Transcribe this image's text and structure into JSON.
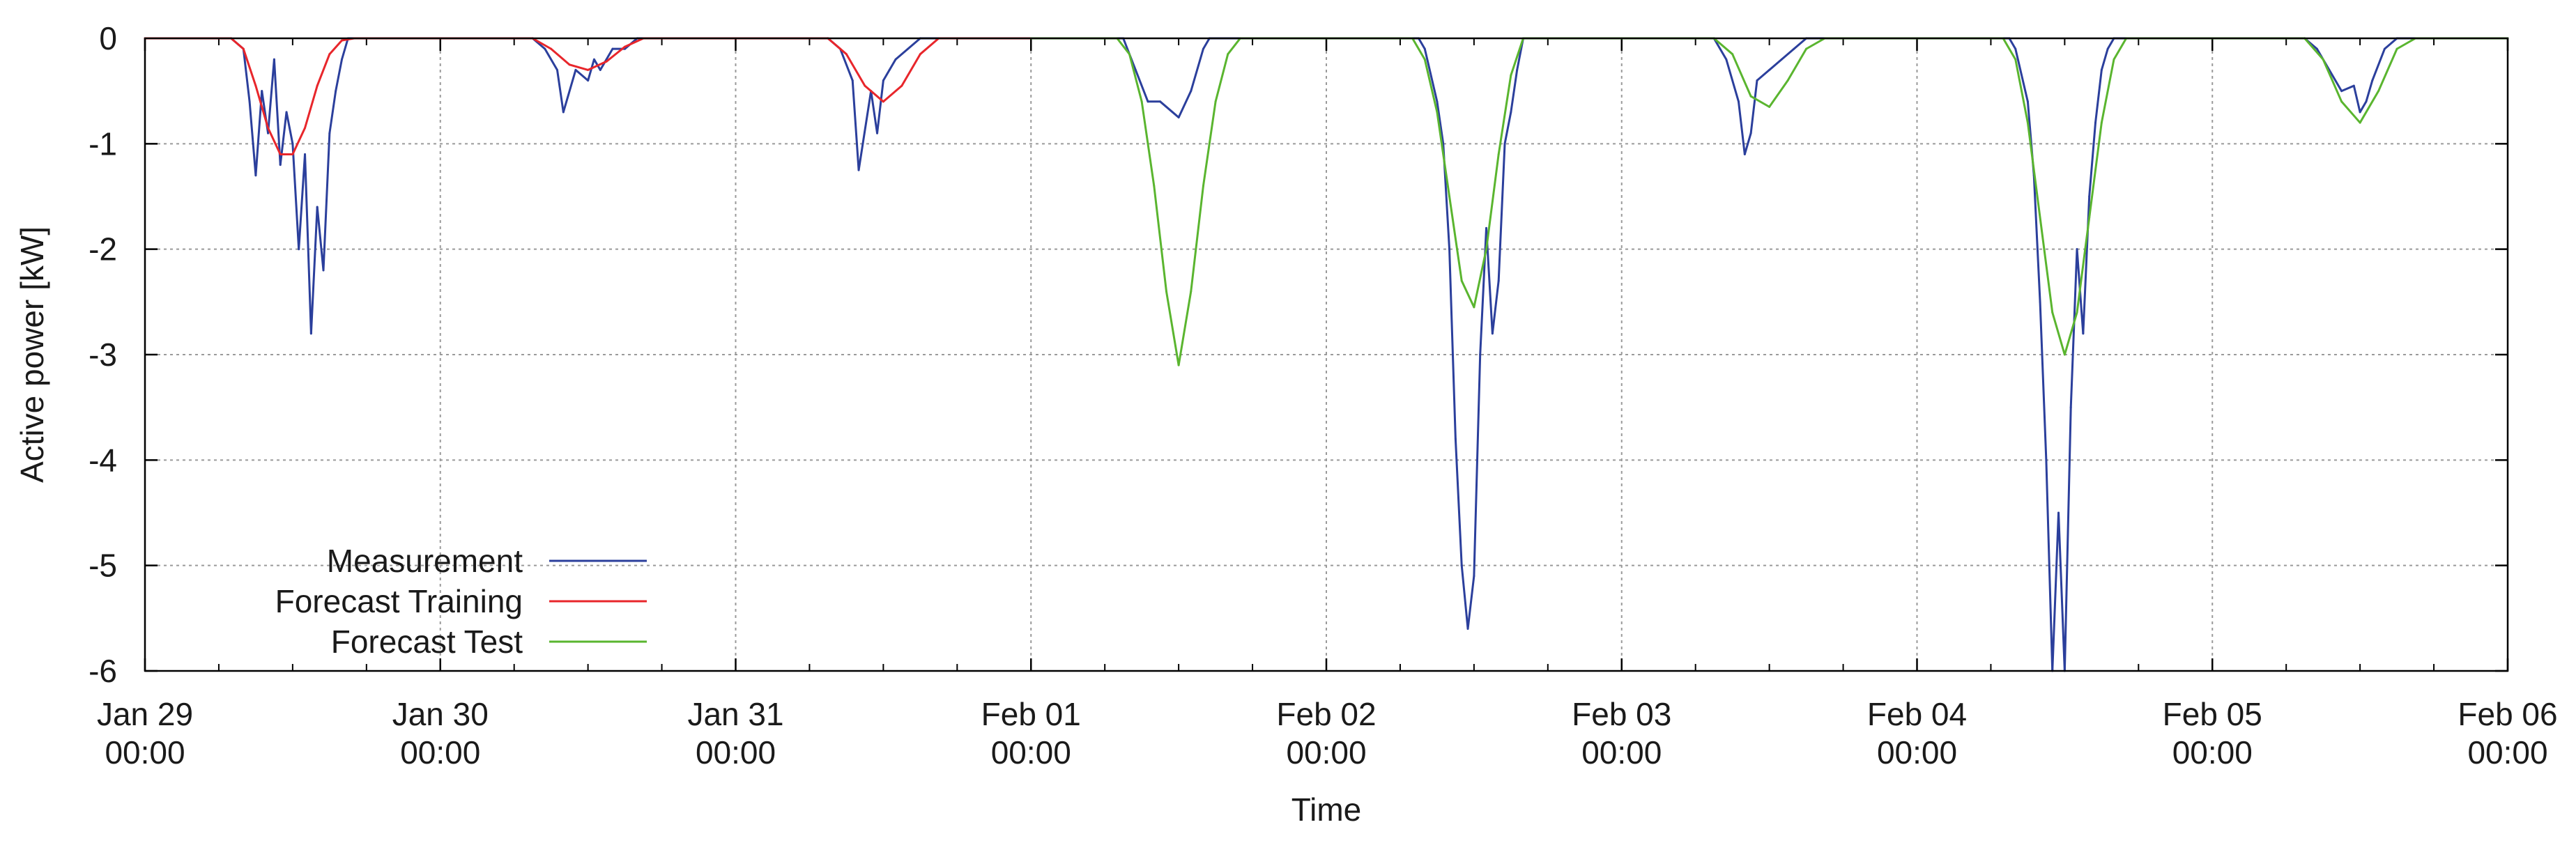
{
  "chart_data": {
    "type": "line",
    "title": "",
    "xlabel": "Time",
    "ylabel": "Active power [kW]",
    "ylim": [
      -6,
      0
    ],
    "xlim": [
      "2024-01-29T00:00",
      "2024-02-06T00:00"
    ],
    "grid": true,
    "legend_position": "bottom-left",
    "y_ticks": [
      0,
      -1,
      -2,
      -3,
      -4,
      -5,
      -6
    ],
    "y_tick_labels": [
      "0",
      "-1",
      "-2",
      "-3",
      "-4",
      "-5",
      "-6"
    ],
    "x_ticks": [
      {
        "date": "Jan 29",
        "time": "00:00"
      },
      {
        "date": "Jan 30",
        "time": "00:00"
      },
      {
        "date": "Jan 31",
        "time": "00:00"
      },
      {
        "date": "Feb 01",
        "time": "00:00"
      },
      {
        "date": "Feb 02",
        "time": "00:00"
      },
      {
        "date": "Feb 03",
        "time": "00:00"
      },
      {
        "date": "Feb 04",
        "time": "00:00"
      },
      {
        "date": "Feb 05",
        "time": "00:00"
      },
      {
        "date": "Feb 06",
        "time": "00:00"
      }
    ],
    "series": [
      {
        "name": "Measurement",
        "color": "#2b3f9c",
        "x": [
          "2024-01-29T00:00",
          "2024-01-29T07:00",
          "2024-01-29T08:00",
          "2024-01-29T08:30",
          "2024-01-29T09:00",
          "2024-01-29T09:30",
          "2024-01-29T10:00",
          "2024-01-29T10:30",
          "2024-01-29T11:00",
          "2024-01-29T11:30",
          "2024-01-29T12:00",
          "2024-01-29T12:30",
          "2024-01-29T13:00",
          "2024-01-29T13:30",
          "2024-01-29T14:00",
          "2024-01-29T14:30",
          "2024-01-29T15:00",
          "2024-01-29T15:30",
          "2024-01-29T16:00",
          "2024-01-29T16:30",
          "2024-01-29T17:00",
          "2024-01-29T18:00",
          "2024-01-30T07:30",
          "2024-01-30T08:30",
          "2024-01-30T09:30",
          "2024-01-30T10:00",
          "2024-01-30T11:00",
          "2024-01-30T12:00",
          "2024-01-30T12:30",
          "2024-01-30T13:00",
          "2024-01-30T14:00",
          "2024-01-30T15:00",
          "2024-01-30T16:00",
          "2024-01-30T17:00",
          "2024-01-31T07:30",
          "2024-01-31T08:30",
          "2024-01-31T09:30",
          "2024-01-31T10:00",
          "2024-01-31T11:00",
          "2024-01-31T11:30",
          "2024-01-31T12:00",
          "2024-01-31T12:30",
          "2024-01-31T13:00",
          "2024-01-31T14:00",
          "2024-01-31T15:00",
          "2024-01-31T16:00",
          "2024-01-31T17:00",
          "2024-02-01T07:30",
          "2024-02-01T08:30",
          "2024-02-01T09:30",
          "2024-02-01T10:30",
          "2024-02-01T11:30",
          "2024-02-01T12:00",
          "2024-02-01T13:00",
          "2024-02-01T14:00",
          "2024-02-01T14:30",
          "2024-02-01T15:00",
          "2024-02-01T15:30",
          "2024-02-01T16:00",
          "2024-02-01T17:00",
          "2024-02-02T07:30",
          "2024-02-02T08:00",
          "2024-02-02T09:00",
          "2024-02-02T09:30",
          "2024-02-02T10:00",
          "2024-02-02T10:30",
          "2024-02-02T11:00",
          "2024-02-02T11:30",
          "2024-02-02T12:00",
          "2024-02-02T12:30",
          "2024-02-02T13:00",
          "2024-02-02T13:30",
          "2024-02-02T14:00",
          "2024-02-02T14:30",
          "2024-02-02T15:00",
          "2024-02-02T15:30",
          "2024-02-02T16:00",
          "2024-02-02T17:00",
          "2024-02-03T07:30",
          "2024-02-03T08:30",
          "2024-02-03T09:30",
          "2024-02-03T10:00",
          "2024-02-03T10:30",
          "2024-02-03T11:00",
          "2024-02-03T12:00",
          "2024-02-03T13:00",
          "2024-02-03T14:00",
          "2024-02-03T15:00",
          "2024-02-03T16:00",
          "2024-02-04T07:30",
          "2024-02-04T08:00",
          "2024-02-04T09:00",
          "2024-02-04T09:30",
          "2024-02-04T10:00",
          "2024-02-04T10:30",
          "2024-02-04T11:00",
          "2024-02-04T11:30",
          "2024-02-04T12:00",
          "2024-02-04T12:30",
          "2024-02-04T13:00",
          "2024-02-04T13:30",
          "2024-02-04T14:00",
          "2024-02-04T14:30",
          "2024-02-04T15:00",
          "2024-02-04T15:30",
          "2024-02-04T16:00",
          "2024-02-04T16:30",
          "2024-02-04T17:00",
          "2024-02-05T07:30",
          "2024-02-05T08:30",
          "2024-02-05T09:30",
          "2024-02-05T10:30",
          "2024-02-05T11:30",
          "2024-02-05T12:00",
          "2024-02-05T12:30",
          "2024-02-05T13:00",
          "2024-02-05T14:00",
          "2024-02-05T15:00",
          "2024-02-05T16:00",
          "2024-02-06T00:00"
        ],
        "y": [
          0,
          0,
          -0.1,
          -0.6,
          -1.3,
          -0.5,
          -0.9,
          -0.2,
          -1.2,
          -0.7,
          -1.0,
          -2.0,
          -1.1,
          -2.8,
          -1.6,
          -2.2,
          -0.9,
          -0.5,
          -0.2,
          0,
          0,
          0,
          0,
          -0.1,
          -0.3,
          -0.7,
          -0.3,
          -0.4,
          -0.2,
          -0.3,
          -0.1,
          -0.1,
          0,
          0,
          0,
          -0.1,
          -0.4,
          -1.25,
          -0.5,
          -0.9,
          -0.4,
          -0.3,
          -0.2,
          -0.1,
          0,
          0,
          0,
          0,
          -0.3,
          -0.6,
          -0.6,
          -0.7,
          -0.75,
          -0.5,
          -0.1,
          0,
          0,
          0,
          0,
          0,
          0,
          -0.1,
          -0.6,
          -1.0,
          -2.0,
          -3.8,
          -5.0,
          -5.6,
          -5.1,
          -3.0,
          -1.8,
          -2.8,
          -2.3,
          -1.0,
          -0.7,
          -0.3,
          0,
          0,
          0,
          -0.2,
          -0.6,
          -1.1,
          -0.9,
          -0.4,
          -0.3,
          -0.2,
          -0.1,
          0,
          0,
          0,
          -0.1,
          -0.6,
          -1.3,
          -2.5,
          -4.0,
          -6.0,
          -4.5,
          -6.0,
          -3.5,
          -2.0,
          -2.8,
          -1.5,
          -0.8,
          -0.3,
          -0.1,
          0,
          0,
          0,
          0,
          -0.1,
          -0.3,
          -0.5,
          -0.45,
          -0.7,
          -0.6,
          -0.4,
          -0.1,
          0,
          0,
          0
        ]
      },
      {
        "name": "Forecast Training",
        "color": "#e8262b",
        "x": [
          "2024-01-29T00:00",
          "2024-01-29T07:00",
          "2024-01-29T08:00",
          "2024-01-29T09:00",
          "2024-01-29T10:00",
          "2024-01-29T11:00",
          "2024-01-29T12:00",
          "2024-01-29T13:00",
          "2024-01-29T14:00",
          "2024-01-29T15:00",
          "2024-01-29T16:00",
          "2024-01-29T17:00",
          "2024-01-30T07:30",
          "2024-01-30T09:00",
          "2024-01-30T10:30",
          "2024-01-30T12:00",
          "2024-01-30T13:30",
          "2024-01-30T15:00",
          "2024-01-30T16:30",
          "2024-01-31T07:30",
          "2024-01-31T09:00",
          "2024-01-31T10:30",
          "2024-01-31T12:00",
          "2024-01-31T13:30",
          "2024-01-31T15:00",
          "2024-01-31T16:30",
          "2024-02-01T00:00"
        ],
        "y": [
          0,
          0,
          -0.1,
          -0.45,
          -0.85,
          -1.1,
          -1.1,
          -0.85,
          -0.45,
          -0.15,
          -0.02,
          0,
          0,
          -0.1,
          -0.25,
          -0.3,
          -0.22,
          -0.08,
          0,
          0,
          -0.15,
          -0.45,
          -0.6,
          -0.45,
          -0.15,
          0,
          0
        ]
      },
      {
        "name": "Forecast Test",
        "color": "#5ab52f",
        "x": [
          "2024-02-01T00:00",
          "2024-02-01T07:00",
          "2024-02-01T08:00",
          "2024-02-01T09:00",
          "2024-02-01T10:00",
          "2024-02-01T11:00",
          "2024-02-01T12:00",
          "2024-02-01T13:00",
          "2024-02-01T14:00",
          "2024-02-01T15:00",
          "2024-02-01T16:00",
          "2024-02-01T17:00",
          "2024-02-02T07:00",
          "2024-02-02T08:00",
          "2024-02-02T09:00",
          "2024-02-02T10:00",
          "2024-02-02T11:00",
          "2024-02-02T12:00",
          "2024-02-02T13:00",
          "2024-02-02T14:00",
          "2024-02-02T15:00",
          "2024-02-02T16:00",
          "2024-02-03T07:30",
          "2024-02-03T09:00",
          "2024-02-03T10:30",
          "2024-02-03T12:00",
          "2024-02-03T13:30",
          "2024-02-03T15:00",
          "2024-02-03T16:30",
          "2024-02-04T07:00",
          "2024-02-04T08:00",
          "2024-02-04T09:00",
          "2024-02-04T10:00",
          "2024-02-04T11:00",
          "2024-02-04T12:00",
          "2024-02-04T13:00",
          "2024-02-04T14:00",
          "2024-02-04T15:00",
          "2024-02-04T16:00",
          "2024-02-04T17:00",
          "2024-02-05T07:30",
          "2024-02-05T09:00",
          "2024-02-05T10:30",
          "2024-02-05T12:00",
          "2024-02-05T13:30",
          "2024-02-05T15:00",
          "2024-02-05T16:30",
          "2024-02-06T00:00"
        ],
        "y": [
          0,
          0,
          -0.15,
          -0.6,
          -1.4,
          -2.4,
          -3.1,
          -2.4,
          -1.4,
          -0.6,
          -0.15,
          0,
          0,
          -0.2,
          -0.7,
          -1.5,
          -2.3,
          -2.55,
          -2.0,
          -1.1,
          -0.35,
          0,
          0,
          -0.15,
          -0.55,
          -0.65,
          -0.4,
          -0.1,
          0,
          0,
          -0.2,
          -0.8,
          -1.7,
          -2.6,
          -3.0,
          -2.6,
          -1.7,
          -0.8,
          -0.2,
          0,
          0,
          -0.2,
          -0.6,
          -0.8,
          -0.5,
          -0.1,
          0,
          0
        ]
      }
    ]
  }
}
